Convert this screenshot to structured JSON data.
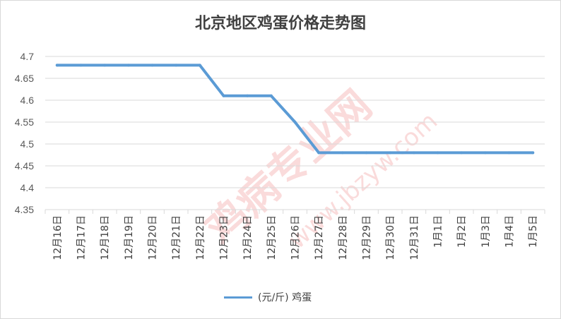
{
  "watermark": {
    "main": "鸡病专业网",
    "url": "www.jbzyw.com",
    "color": "#e53935"
  },
  "chart_data": {
    "type": "line",
    "title": "北京地区鸡蛋价格走势图",
    "categories": [
      "12月16日",
      "12月17日",
      "12月18日",
      "12月19日",
      "12月20日",
      "12月21日",
      "12月22日",
      "12月23日",
      "12月24日",
      "12月25日",
      "12月26日",
      "12月27日",
      "12月28日",
      "12月29日",
      "12月30日",
      "12月31日",
      "1月1日",
      "1月2日",
      "1月3日",
      "1月4日",
      "1月5日"
    ],
    "series": [
      {
        "name": "(元/斤) 鸡蛋",
        "color": "#5b9bd5",
        "values": [
          4.68,
          4.68,
          4.68,
          4.68,
          4.68,
          4.68,
          4.68,
          4.61,
          4.61,
          4.61,
          4.55,
          4.48,
          4.48,
          4.48,
          4.48,
          4.48,
          4.48,
          4.48,
          4.48,
          4.48,
          4.48
        ]
      }
    ],
    "ylim": [
      4.35,
      4.7
    ],
    "yticks": [
      "4.35",
      "4.4",
      "4.45",
      "4.5",
      "4.55",
      "4.6",
      "4.65",
      "4.7"
    ],
    "grid": true,
    "legend_position": "bottom"
  }
}
